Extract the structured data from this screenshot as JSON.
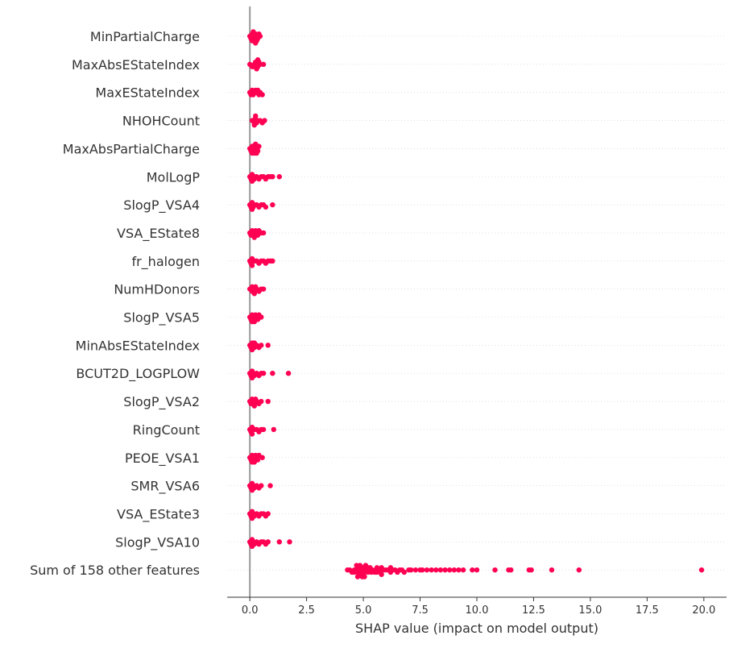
{
  "chart_data": {
    "type": "scatter",
    "subtype": "shap-beeswarm",
    "title": "",
    "xlabel": "SHAP value (impact on model output)",
    "ylabel": "",
    "xlim": [
      -1.0,
      21.0
    ],
    "xticks": [
      0.0,
      2.5,
      5.0,
      7.5,
      10.0,
      12.5,
      15.0,
      17.5,
      20.0
    ],
    "xtick_labels": [
      "0.0",
      "2.5",
      "5.0",
      "7.5",
      "10.0",
      "12.5",
      "15.0",
      "17.5",
      "20.0"
    ],
    "grid": "horizontal dotted per feature row",
    "zero_line": 0.0,
    "point_color": "#ff0052",
    "zero_line_color": "#999999",
    "features": [
      {
        "name": "MinPartialCharge",
        "values": [
          0.0,
          0.05,
          0.1,
          0.15,
          0.2,
          0.25,
          0.3,
          0.35,
          0.4,
          0.45,
          0.1,
          0.2,
          0.3,
          0.15,
          0.25
        ]
      },
      {
        "name": "MaxAbsEStateIndex",
        "values": [
          0.0,
          0.1,
          0.2,
          0.3,
          0.35,
          0.4,
          0.45,
          0.6,
          0.15,
          0.25,
          0.3,
          0.35
        ]
      },
      {
        "name": "MaxEStateIndex",
        "values": [
          0.0,
          0.05,
          0.1,
          0.2,
          0.3,
          0.4,
          0.45,
          0.55,
          0.15,
          0.25,
          0.35
        ]
      },
      {
        "name": "NHOHCount",
        "values": [
          0.1,
          0.15,
          0.2,
          0.25,
          0.3,
          0.45,
          0.55,
          0.65,
          0.2,
          0.25,
          0.3
        ]
      },
      {
        "name": "MaxAbsPartialCharge",
        "values": [
          0.0,
          0.05,
          0.1,
          0.15,
          0.2,
          0.25,
          0.3,
          0.35,
          0.4,
          0.1,
          0.2,
          0.3,
          0.25
        ]
      },
      {
        "name": "MolLogP",
        "values": [
          0.0,
          0.05,
          0.1,
          0.2,
          0.3,
          0.4,
          0.5,
          0.6,
          0.7,
          0.8,
          0.9,
          1.0,
          1.3,
          0.1,
          0.2
        ]
      },
      {
        "name": "SlogP_VSA4",
        "values": [
          0.0,
          0.05,
          0.1,
          0.2,
          0.3,
          0.4,
          0.5,
          0.6,
          0.7,
          1.0,
          0.1,
          0.15
        ]
      },
      {
        "name": "VSA_EState8",
        "values": [
          0.0,
          0.05,
          0.1,
          0.15,
          0.2,
          0.25,
          0.3,
          0.35,
          0.4,
          0.5,
          0.6,
          0.2
        ]
      },
      {
        "name": "fr_halogen",
        "values": [
          0.0,
          0.05,
          0.1,
          0.2,
          0.3,
          0.4,
          0.5,
          0.6,
          0.7,
          0.8,
          0.9,
          1.0,
          0.1
        ]
      },
      {
        "name": "NumHDonors",
        "values": [
          0.0,
          0.1,
          0.15,
          0.2,
          0.25,
          0.3,
          0.4,
          0.5,
          0.6,
          0.2,
          0.1
        ]
      },
      {
        "name": "SlogP_VSA5",
        "values": [
          0.0,
          0.05,
          0.1,
          0.15,
          0.2,
          0.25,
          0.3,
          0.35,
          0.4,
          0.5,
          0.1,
          0.2
        ]
      },
      {
        "name": "MinAbsEStateIndex",
        "values": [
          0.0,
          0.05,
          0.1,
          0.15,
          0.2,
          0.3,
          0.4,
          0.5,
          0.8,
          0.1,
          0.2
        ]
      },
      {
        "name": "BCUT2D_LOGPLOW",
        "values": [
          0.0,
          0.05,
          0.1,
          0.15,
          0.2,
          0.3,
          0.4,
          0.5,
          0.6,
          1.0,
          1.7,
          0.1
        ]
      },
      {
        "name": "SlogP_VSA2",
        "values": [
          0.0,
          0.05,
          0.1,
          0.15,
          0.2,
          0.25,
          0.3,
          0.4,
          0.5,
          0.8,
          0.2
        ]
      },
      {
        "name": "RingCount",
        "values": [
          0.0,
          0.05,
          0.1,
          0.2,
          0.3,
          0.4,
          0.5,
          0.6,
          1.05,
          0.1
        ]
      },
      {
        "name": "PEOE_VSA1",
        "values": [
          0.0,
          0.05,
          0.1,
          0.15,
          0.2,
          0.25,
          0.3,
          0.35,
          0.4,
          0.55,
          0.1,
          0.2
        ]
      },
      {
        "name": "SMR_VSA6",
        "values": [
          0.0,
          0.05,
          0.1,
          0.15,
          0.2,
          0.3,
          0.4,
          0.5,
          0.9,
          0.1
        ]
      },
      {
        "name": "VSA_EState3",
        "values": [
          0.0,
          0.05,
          0.1,
          0.15,
          0.2,
          0.3,
          0.4,
          0.5,
          0.6,
          0.7,
          0.8,
          0.1
        ]
      },
      {
        "name": "SlogP_VSA10",
        "values": [
          0.0,
          0.05,
          0.1,
          0.15,
          0.2,
          0.3,
          0.4,
          0.5,
          0.6,
          0.7,
          0.8,
          1.3,
          1.75,
          0.1
        ]
      },
      {
        "name": "Sum of 158 other features",
        "values": [
          4.3,
          4.4,
          4.5,
          4.6,
          4.7,
          4.75,
          4.8,
          4.85,
          4.9,
          4.95,
          5.0,
          5.05,
          5.1,
          5.15,
          5.2,
          5.3,
          5.35,
          5.4,
          5.5,
          5.55,
          5.6,
          5.7,
          5.75,
          5.8,
          5.9,
          6.0,
          6.1,
          6.2,
          6.3,
          6.4,
          6.5,
          6.6,
          6.7,
          6.8,
          7.0,
          7.1,
          7.3,
          7.5,
          7.6,
          7.8,
          8.0,
          8.2,
          8.4,
          8.6,
          8.8,
          9.0,
          9.2,
          9.4,
          9.8,
          10.0,
          10.8,
          11.4,
          11.5,
          12.3,
          12.4,
          13.3,
          14.5,
          19.9,
          4.8,
          4.9,
          5.0,
          5.1,
          5.2,
          5.3,
          4.7,
          4.85,
          4.95,
          5.05,
          5.6,
          5.8,
          6.2,
          4.6,
          4.75
        ]
      }
    ]
  }
}
